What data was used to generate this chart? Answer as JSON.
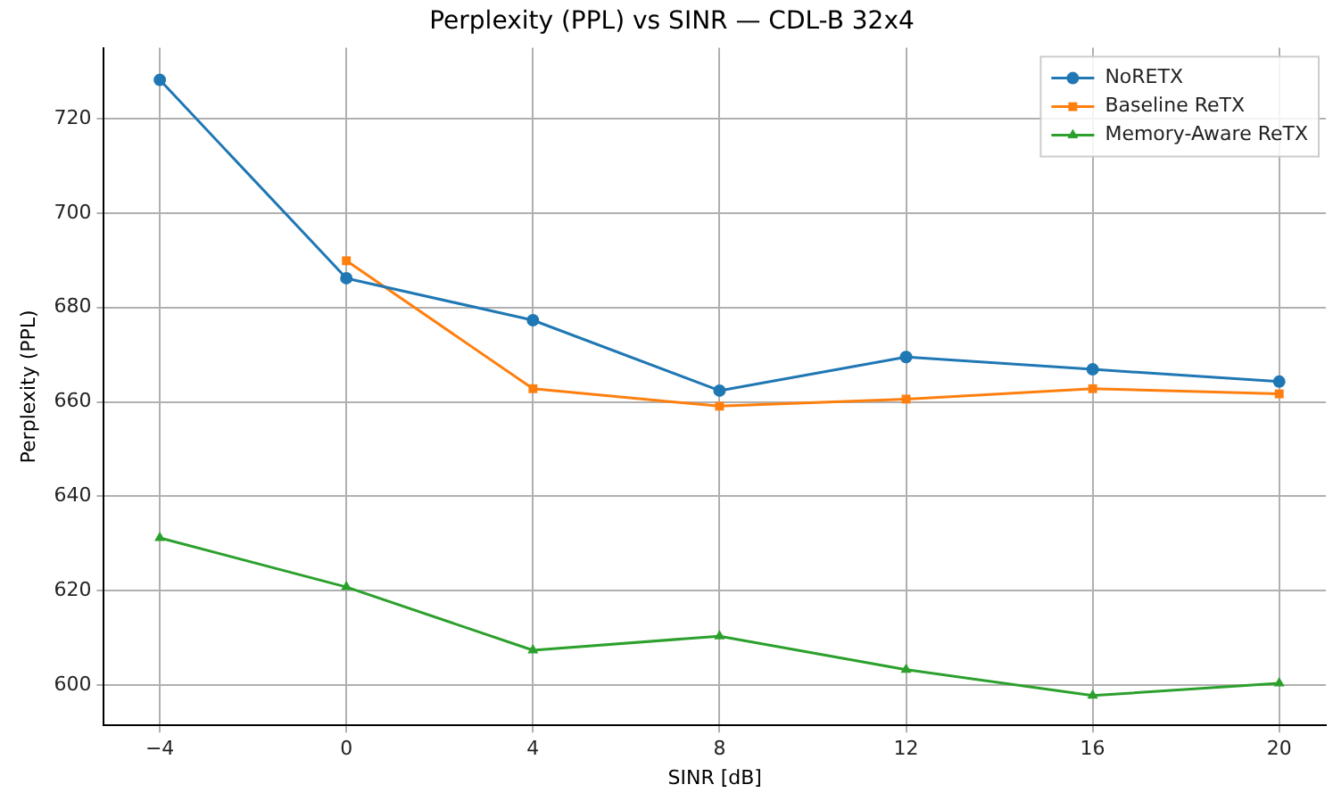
{
  "chart_data": {
    "type": "line",
    "title": "Perplexity (PPL) vs SINR — CDL-B 32x4",
    "xlabel": "SINR [dB]",
    "ylabel": "Perplexity (PPL)",
    "x": [
      -4,
      0,
      4,
      8,
      12,
      16,
      20
    ],
    "series": [
      {
        "name": "NoRETX",
        "color": "#1f77b4",
        "marker": "circle",
        "values": [
          728.2,
          686.2,
          677.3,
          662.4,
          669.5,
          666.9,
          664.3
        ]
      },
      {
        "name": "Baseline ReTX",
        "color": "#ff7f0e",
        "marker": "square",
        "values": [
          null,
          689.9,
          662.8,
          659.1,
          660.6,
          662.8,
          661.7
        ]
      },
      {
        "name": "Memory-Aware ReTX",
        "color": "#2ca02c",
        "marker": "triangle",
        "values": [
          631.2,
          620.8,
          607.4,
          610.4,
          603.3,
          597.8,
          600.4
        ]
      }
    ],
    "xlim": [
      -5.2,
      21
    ],
    "xticks": [
      {
        "value": -4,
        "label": "−4"
      },
      0,
      4,
      8,
      12,
      16,
      20
    ],
    "ylim": [
      591.5,
      735
    ],
    "yticks": [
      600,
      620,
      640,
      660,
      680,
      700,
      720
    ],
    "grid": true,
    "legend": "top right",
    "line_style": "solid"
  }
}
